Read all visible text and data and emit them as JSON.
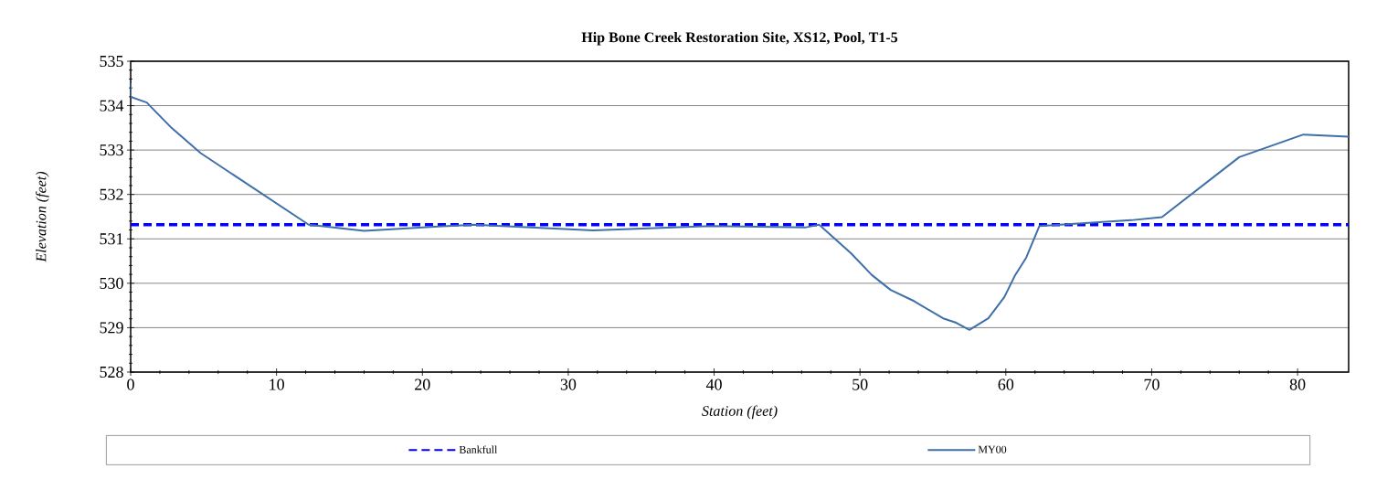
{
  "chart_data": {
    "type": "line",
    "title": "Hip Bone Creek Restoration Site, XS12, Pool, T1-5",
    "xlabel": "Station (feet)",
    "ylabel": "Elevation (feet)",
    "xlim": [
      0,
      83.5
    ],
    "ylim": [
      528,
      535
    ],
    "xticks": [
      0,
      10,
      20,
      30,
      40,
      50,
      60,
      70,
      80
    ],
    "yticks": [
      528,
      529,
      530,
      531,
      532,
      533,
      534,
      535
    ],
    "grid": "y",
    "legend": "bottom",
    "marker": "none",
    "series": [
      {
        "name": "Bankfull",
        "color": "#0000ff",
        "line_style": "dashed",
        "x": [
          0,
          83.5
        ],
        "values": [
          531.32,
          531.32
        ]
      },
      {
        "name": "MY00",
        "color": "#3f6fa8",
        "line_style": "solid",
        "x": [
          0,
          0,
          1.1,
          2.8,
          4.8,
          12.2,
          16,
          21.1,
          23.5,
          31.7,
          39.9,
          46.3,
          47.2,
          49.4,
          50.8,
          52.1,
          53.7,
          55.7,
          56.6,
          57.5,
          58.8,
          59.9,
          60.6,
          61.4,
          62.3,
          68.6,
          70.7,
          76,
          80.4,
          83.5
        ],
        "values": [
          534.5,
          534.2,
          534.07,
          533.5,
          532.93,
          531.32,
          531.18,
          531.28,
          531.32,
          531.19,
          531.29,
          531.26,
          531.32,
          530.67,
          530.19,
          529.85,
          529.6,
          529.21,
          529.11,
          528.95,
          529.21,
          529.69,
          530.16,
          530.58,
          531.29,
          531.42,
          531.49,
          532.84,
          533.35,
          533.3
        ]
      }
    ]
  }
}
